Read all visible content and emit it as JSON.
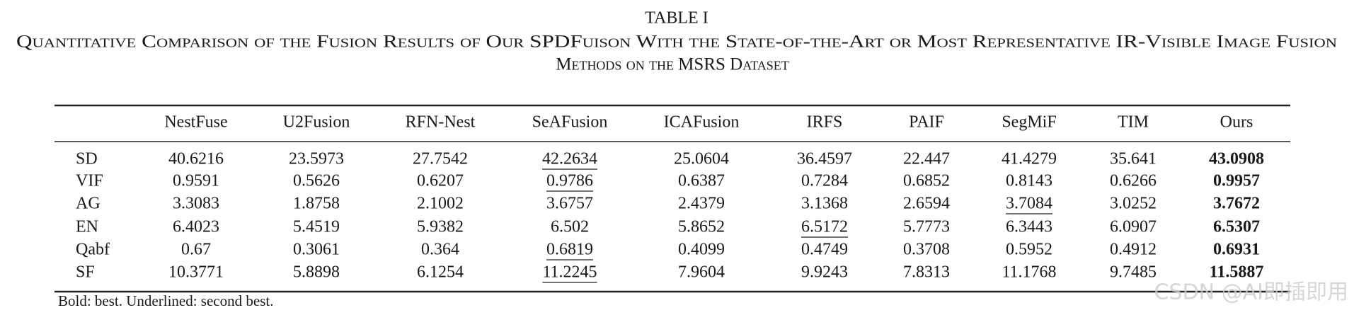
{
  "title": "TABLE I",
  "caption": [
    "Quantitative Comparison of the Fusion Results of Our SPDFuison With the State-of-the-Art or Most Representative IR-Visible Image Fusion",
    "Methods on the MSRS Dataset"
  ],
  "table": {
    "header": [
      "NestFuse",
      "U2Fusion",
      "RFN-Nest",
      "SeAFusion",
      "ICAFusion",
      "IRFS",
      "PAIF",
      "SegMiF",
      "TIM",
      "Ours"
    ],
    "rows": [
      {
        "label": "SD",
        "cells": [
          "40.6216",
          "23.5973",
          "27.7542",
          "42.2634",
          "25.0604",
          "36.4597",
          "22.447",
          "41.4279",
          "35.641",
          "43.0908"
        ],
        "best": 9,
        "second": 3
      },
      {
        "label": "VIF",
        "cells": [
          "0.9591",
          "0.5626",
          "0.6207",
          "0.9786",
          "0.6387",
          "0.7284",
          "0.6852",
          "0.8143",
          "0.6266",
          "0.9957"
        ],
        "best": 9,
        "second": 3
      },
      {
        "label": "AG",
        "cells": [
          "3.3083",
          "1.8758",
          "2.1002",
          "3.6757",
          "2.4379",
          "3.1368",
          "2.6594",
          "3.7084",
          "3.0252",
          "3.7672"
        ],
        "best": 9,
        "second": 7
      },
      {
        "label": "EN",
        "cells": [
          "6.4023",
          "5.4519",
          "5.9382",
          "6.502",
          "5.8652",
          "6.5172",
          "5.7773",
          "6.3443",
          "6.0907",
          "6.5307"
        ],
        "best": 9,
        "second": 5
      },
      {
        "label": "Qabf",
        "cells": [
          "0.67",
          "0.3061",
          "0.364",
          "0.6819",
          "0.4099",
          "0.4749",
          "0.3708",
          "0.5952",
          "0.4912",
          "0.6931"
        ],
        "best": 9,
        "second": 3
      },
      {
        "label": "SF",
        "cells": [
          "10.3771",
          "5.8898",
          "6.1254",
          "11.2245",
          "7.9604",
          "9.9243",
          "7.8313",
          "11.1768",
          "9.7485",
          "11.5887"
        ],
        "best": 9,
        "second": 3
      }
    ]
  },
  "note": "Bold: best. Underlined: second best.",
  "watermark": "CSDN @AI即插即用"
}
